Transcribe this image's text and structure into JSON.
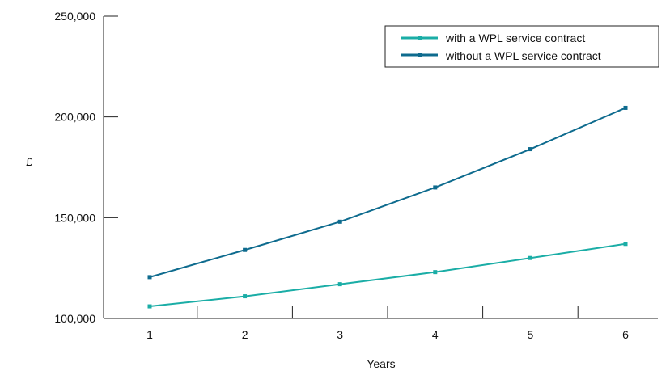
{
  "chart_data": {
    "type": "line",
    "title": "",
    "xlabel": "Years",
    "ylabel": "£",
    "categories": [
      "1",
      "2",
      "3",
      "4",
      "5",
      "6"
    ],
    "ylim": [
      100000,
      250000
    ],
    "yticks": [
      100000,
      150000,
      200000,
      250000
    ],
    "ytick_labels": [
      "100,000",
      "150,000",
      "200,000",
      "250,000"
    ],
    "grid": false,
    "legend_position": "top-right",
    "series": [
      {
        "name": "with a WPL service contract",
        "color": "#1aada6",
        "values": [
          106000,
          111000,
          117000,
          123000,
          130000,
          137000
        ]
      },
      {
        "name": "without a WPL service contract",
        "color": "#0e6b8e",
        "values": [
          120500,
          134000,
          148000,
          165000,
          184000,
          204500
        ]
      }
    ]
  }
}
